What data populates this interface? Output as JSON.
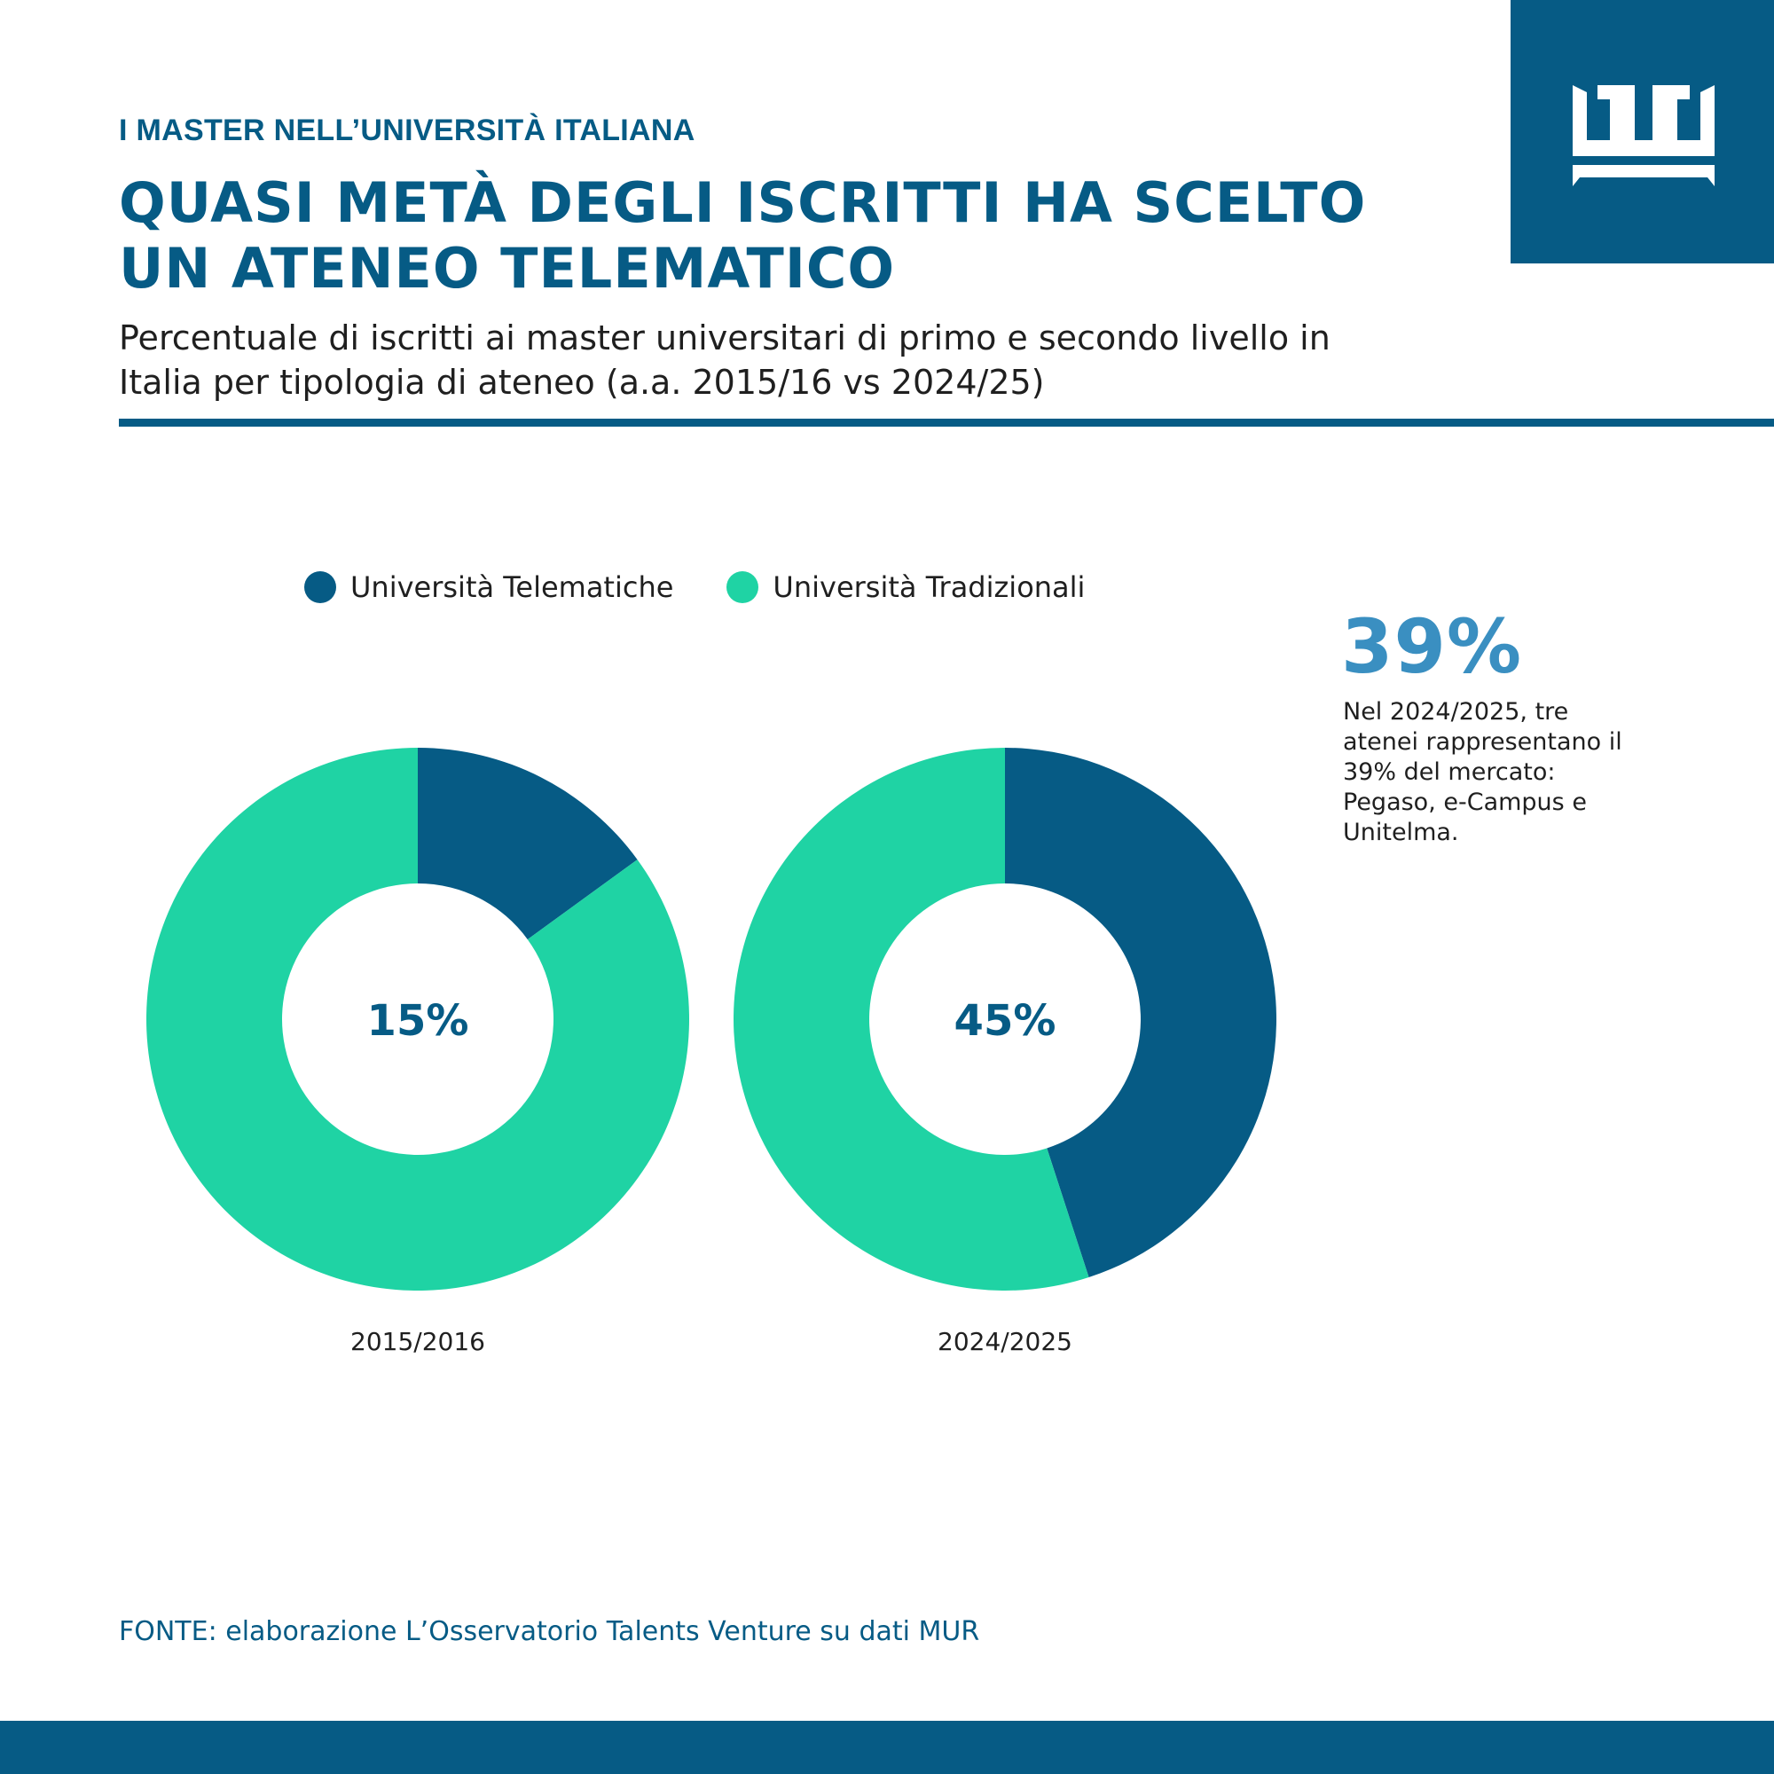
{
  "header": {
    "kicker": "I MASTER NELL’UNIVERSITÀ ITALIANA",
    "title_lines": [
      "QUASI METÀ DEGLI ISCRITTI HA SCELTO",
      "UN ATENEO TELEMATICO"
    ],
    "subtitle_lines": [
      "Percentuale di iscritti ai master universitari di primo e secondo livello in",
      "Italia per tipologia di ateneo (a.a. 2015/16 vs 2024/25)"
    ]
  },
  "logo": {
    "icon": "crown-logo-icon"
  },
  "colors": {
    "brand": "#065b85",
    "telematiche": "#065b85",
    "tradizionali": "#1fd3a4",
    "callout": "#3a8fc1"
  },
  "legend": {
    "items": [
      {
        "label": "Università Telematiche",
        "color": "#065b85"
      },
      {
        "label": "Università Tradizionali",
        "color": "#1fd3a4"
      }
    ]
  },
  "chart_data": [
    {
      "type": "pie",
      "style": "donut",
      "period": "2015/2016",
      "center_label": "15%",
      "slices": [
        {
          "name": "Università Telematiche",
          "value": 15
        },
        {
          "name": "Università Tradizionali",
          "value": 85
        }
      ]
    },
    {
      "type": "pie",
      "style": "donut",
      "period": "2024/2025",
      "center_label": "45%",
      "slices": [
        {
          "name": "Università Telematiche",
          "value": 45
        },
        {
          "name": "Università Tradizionali",
          "value": 55
        }
      ]
    }
  ],
  "callout": {
    "value": "39%",
    "text_lines": [
      "Nel 2024/2025, tre",
      "atenei rappresentano il",
      "39% del mercato:",
      "Pegaso, e-Campus e",
      "Unitelma."
    ]
  },
  "source": "FONTE: elaborazione L’Osservatorio Talents Venture su dati MUR"
}
